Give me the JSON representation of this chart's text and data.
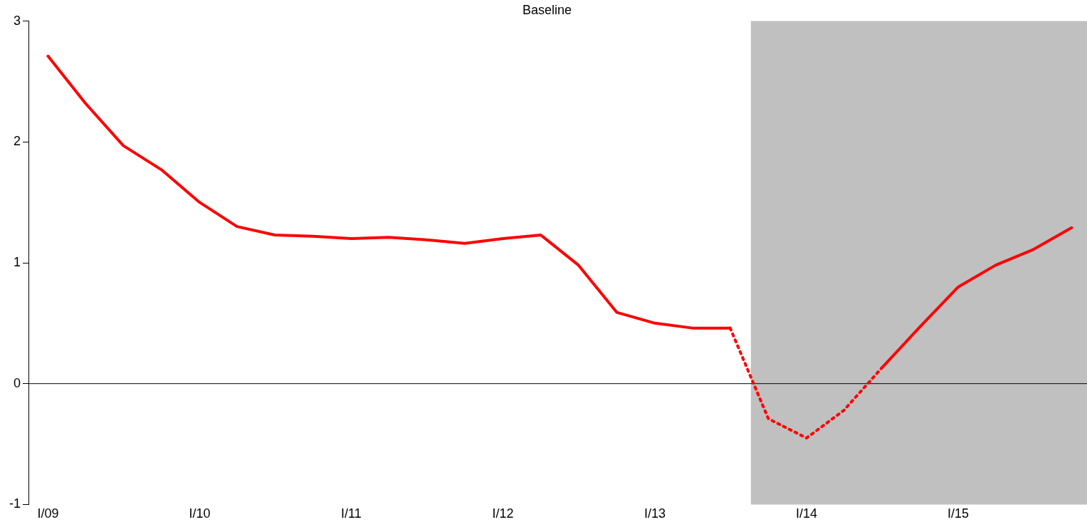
{
  "chart_data": {
    "type": "line",
    "title": "Baseline",
    "x": [
      "2009-01",
      "2009-04",
      "2009-07",
      "2009-10",
      "2010-01",
      "2010-04",
      "2010-07",
      "2010-10",
      "2011-01",
      "2011-04",
      "2011-07",
      "2011-10",
      "2012-01",
      "2012-04",
      "2012-07",
      "2012-10",
      "2013-01",
      "2013-04",
      "2013-07",
      "2013-10",
      "2014-01",
      "2014-04",
      "2014-07",
      "2014-10",
      "2015-01",
      "2015-04",
      "2015-07",
      "2015-10"
    ],
    "series": [
      {
        "color": "#ff0000",
        "line_style": "solid",
        "values": [
          2.71,
          2.32,
          1.97,
          1.77,
          1.5,
          1.3,
          1.23,
          1.22,
          1.2,
          1.21,
          1.19,
          1.16,
          1.2,
          1.23,
          0.98,
          0.59,
          0.5,
          0.46,
          0.46,
          null,
          null,
          null,
          0.13,
          0.47,
          0.8,
          0.98,
          1.11,
          1.29
        ]
      },
      {
        "color": "#ff0000",
        "line_style": "dotted",
        "values": [
          null,
          null,
          null,
          null,
          null,
          null,
          null,
          null,
          null,
          null,
          null,
          null,
          null,
          null,
          null,
          null,
          null,
          null,
          0.46,
          -0.29,
          -0.45,
          -0.22,
          0.13,
          null,
          null,
          null,
          null,
          null
        ]
      }
    ],
    "xlim": [
      "2008-11-15",
      "2015-11-07"
    ],
    "xticks": [
      {
        "value": "2009-01",
        "label": "I/09"
      },
      {
        "value": "2010-01",
        "label": "I/10"
      },
      {
        "value": "2011-01",
        "label": "I/11"
      },
      {
        "value": "2012-01",
        "label": "I/12"
      },
      {
        "value": "2013-01",
        "label": "I/13"
      },
      {
        "value": "2014-01",
        "label": "I/14"
      },
      {
        "value": "2015-01",
        "label": "I/15"
      }
    ],
    "ylim": [
      -1,
      3
    ],
    "yticks": [
      -1,
      0,
      1,
      2,
      3
    ],
    "ref_lines": [
      {
        "axis": "y",
        "value": 0,
        "color": "#000000"
      }
    ],
    "bands": [
      {
        "axis": "x",
        "from": "2013-08-20",
        "to": "2015-11-07",
        "color": "#c0c0c0"
      }
    ],
    "grid": false,
    "legend": false
  }
}
